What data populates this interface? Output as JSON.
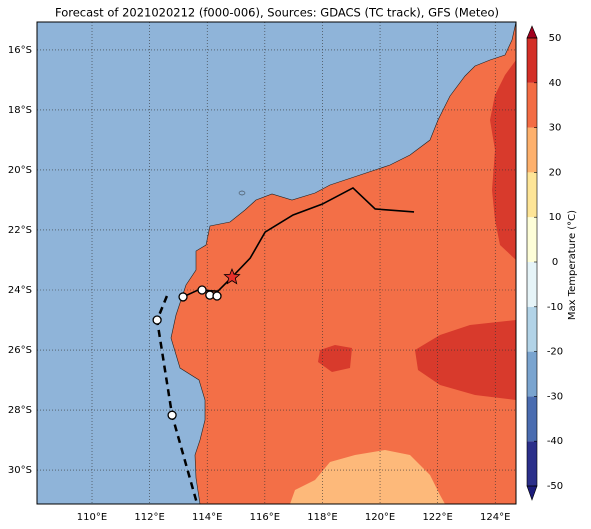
{
  "title": "Forecast of 2021020212 (f000-006), Sources: GDACS (TC track), GFS (Meteo)",
  "map": {
    "xlim": [
      108.09,
      124.72
    ],
    "ylim": [
      -31.13,
      -15.07
    ],
    "xticks": [
      {
        "value": 110,
        "label": "110°E"
      },
      {
        "value": 112,
        "label": "112°E"
      },
      {
        "value": 114,
        "label": "114°E"
      },
      {
        "value": 116,
        "label": "116°E"
      },
      {
        "value": 118,
        "label": "118°E"
      },
      {
        "value": 120,
        "label": "120°E"
      },
      {
        "value": 122,
        "label": "122°E"
      },
      {
        "value": 124,
        "label": "124°E"
      }
    ],
    "yticks": [
      {
        "value": -16,
        "label": "16°S"
      },
      {
        "value": -18,
        "label": "18°S"
      },
      {
        "value": -20,
        "label": "20°S"
      },
      {
        "value": -22,
        "label": "22°S"
      },
      {
        "value": -24,
        "label": "24°S"
      },
      {
        "value": -26,
        "label": "26°S"
      },
      {
        "value": -28,
        "label": "28°S"
      },
      {
        "value": -30,
        "label": "30°S"
      }
    ],
    "grid": true,
    "tracks": [
      {
        "style": "solid",
        "color": "#000000",
        "lon": [
          113.16,
          113.68,
          114.37,
          114.86,
          115.49,
          116.01,
          116.98,
          117.99,
          119.06,
          119.83,
          121.18
        ],
        "lat": [
          -24.23,
          -24.0,
          -24.04,
          -23.57,
          -22.94,
          -22.07,
          -21.5,
          -21.14,
          -20.6,
          -21.3,
          -21.4
        ]
      },
      {
        "style": "dashed",
        "color": "#000000",
        "lon": [
          112.6,
          112.26,
          112.78,
          113.65
        ],
        "lat": [
          -24.2,
          -25.0,
          -28.17,
          -31.13
        ]
      }
    ],
    "markers": {
      "lon": [
        112.26,
        112.78,
        113.16,
        113.82,
        114.09,
        114.34
      ],
      "lat": [
        -25.0,
        -28.17,
        -24.23,
        -24.0,
        -24.17,
        -24.2
      ]
    },
    "star": {
      "lon": 114.86,
      "lat": -23.57,
      "color": "#e8302a"
    }
  },
  "colorbar": {
    "label": "Max Temperature (°C)",
    "ylim": [
      -50,
      50
    ],
    "yticks": [
      -50,
      -40,
      -30,
      -20,
      -10,
      0,
      10,
      20,
      30,
      40,
      50
    ],
    "colors": [
      "#2b2f8a",
      "#4a6cb0",
      "#7aa4cf",
      "#b2d3e7",
      "#e6f4f8",
      "#fefed8",
      "#fee597",
      "#fdb06c",
      "#f36c44",
      "#d32f27"
    ],
    "under": "#1c1c7a",
    "over": "#a0001e"
  }
}
